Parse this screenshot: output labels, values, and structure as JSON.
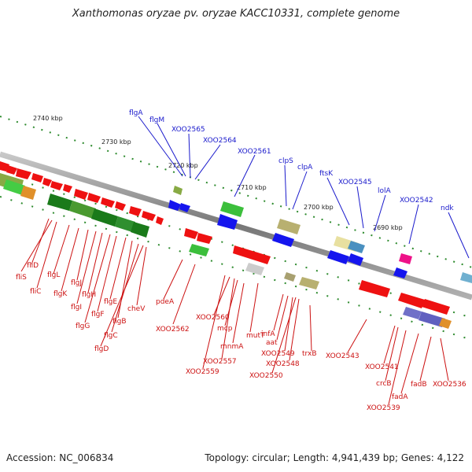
{
  "title": "Xanthomonas oryzae pv. oryzae KACC10331, complete genome",
  "footer": {
    "accession": "Accession: NC_006834",
    "topology": "Topology: circular; Length: 4,941,439 bp; Genes: 4,122"
  },
  "colors": {
    "backbone": "#888888",
    "top_label": "#1a1acc",
    "bottom_label": "#cc1111",
    "tick": "#2e8b2e",
    "forward_gene": "#1515ee",
    "reverse_gene": "#ee1111"
  },
  "kbp_ticks": [
    "2740 kbp",
    "2730 kbp",
    "2720 kbp",
    "2710 kbp",
    "2700 kbp",
    "2690 kbp"
  ],
  "top_labels": [
    "flgA",
    "flgM",
    "XOO2565",
    "XOO2564",
    "XOO2561",
    "clpS",
    "clpA",
    "ftsK",
    "XOO2545",
    "lolA",
    "XOO2542",
    "ndk"
  ],
  "bottom_labels": [
    "fliD",
    "fliS",
    "fliC",
    "flgL",
    "flgK",
    "flgJ",
    "flgI",
    "flgH",
    "flgG",
    "flgF",
    "flgE",
    "flgB",
    "flgC",
    "flgD",
    "cheV",
    "pdeA",
    "XOO2562",
    "XOO2560",
    "mcp",
    "XOO2557",
    "XOO2559",
    "mnmA",
    "mutT",
    "infA",
    "aat",
    "XOO2549",
    "XOO2548",
    "XOO2550",
    "trxB",
    "XOO2543",
    "XOO2541",
    "crcB",
    "XOO2539",
    "fadA",
    "fadB",
    "XOO2536"
  ]
}
